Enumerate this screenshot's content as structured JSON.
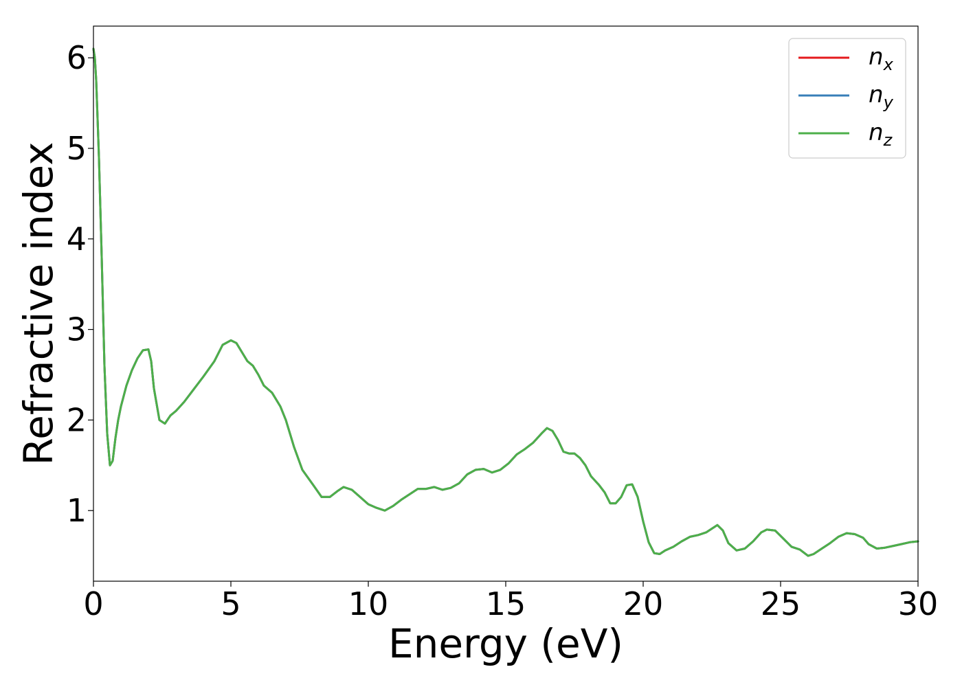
{
  "chart_data": {
    "type": "line",
    "xlabel": "Energy (eV)",
    "ylabel": "Refractive index",
    "xlim": [
      0,
      30
    ],
    "ylim": [
      0.22,
      6.35
    ],
    "xticks": [
      "0",
      "5",
      "10",
      "15",
      "20",
      "25",
      "30"
    ],
    "yticks": [
      "1",
      "2",
      "3",
      "4",
      "5",
      "6"
    ],
    "grid": false,
    "legend_position": "top-right",
    "series": [
      {
        "name": "n",
        "subscript": "x",
        "color": "#e41a1c",
        "x": [
          0,
          0.05,
          0.1,
          0.2,
          0.3,
          0.4,
          0.5,
          0.6,
          0.7,
          0.8,
          0.9,
          1.0,
          1.2,
          1.4,
          1.6,
          1.8,
          2.0,
          2.1,
          2.2,
          2.4,
          2.6,
          2.8,
          3.0,
          3.3,
          3.6,
          4.0,
          4.4,
          4.7,
          5.0,
          5.2,
          5.4,
          5.6,
          5.8,
          6.0,
          6.2,
          6.5,
          6.8,
          7.0,
          7.3,
          7.6,
          8.0,
          8.3,
          8.6,
          8.9,
          9.1,
          9.4,
          9.7,
          10.0,
          10.3,
          10.6,
          10.9,
          11.2,
          11.5,
          11.8,
          12.1,
          12.4,
          12.7,
          13.0,
          13.3,
          13.6,
          13.9,
          14.2,
          14.5,
          14.8,
          15.1,
          15.4,
          15.7,
          16.0,
          16.3,
          16.5,
          16.7,
          16.9,
          17.1,
          17.3,
          17.5,
          17.7,
          17.9,
          18.1,
          18.4,
          18.6,
          18.8,
          19.0,
          19.2,
          19.4,
          19.6,
          19.8,
          20.0,
          20.2,
          20.4,
          20.6,
          20.8,
          21.1,
          21.4,
          21.7,
          22.0,
          22.3,
          22.5,
          22.7,
          22.9,
          23.1,
          23.4,
          23.7,
          24.0,
          24.3,
          24.5,
          24.8,
          25.1,
          25.4,
          25.7,
          26.0,
          26.2,
          26.5,
          26.8,
          27.1,
          27.4,
          27.7,
          28.0,
          28.2,
          28.5,
          28.8,
          29.1,
          29.4,
          29.7,
          30.0
        ],
        "y": [
          6.1,
          6.0,
          5.75,
          4.9,
          3.8,
          2.6,
          1.85,
          1.5,
          1.55,
          1.8,
          2.0,
          2.15,
          2.38,
          2.55,
          2.68,
          2.77,
          2.78,
          2.65,
          2.35,
          2.0,
          1.96,
          2.05,
          2.1,
          2.2,
          2.32,
          2.48,
          2.65,
          2.83,
          2.88,
          2.85,
          2.75,
          2.65,
          2.6,
          2.5,
          2.38,
          2.3,
          2.15,
          2.0,
          1.7,
          1.45,
          1.28,
          1.15,
          1.15,
          1.22,
          1.26,
          1.23,
          1.15,
          1.07,
          1.03,
          1.0,
          1.05,
          1.12,
          1.18,
          1.24,
          1.24,
          1.26,
          1.23,
          1.25,
          1.3,
          1.4,
          1.45,
          1.46,
          1.42,
          1.45,
          1.52,
          1.62,
          1.68,
          1.75,
          1.85,
          1.91,
          1.88,
          1.78,
          1.65,
          1.63,
          1.63,
          1.58,
          1.5,
          1.38,
          1.28,
          1.2,
          1.08,
          1.08,
          1.15,
          1.28,
          1.29,
          1.15,
          0.88,
          0.65,
          0.53,
          0.52,
          0.56,
          0.6,
          0.66,
          0.71,
          0.73,
          0.76,
          0.8,
          0.84,
          0.78,
          0.64,
          0.56,
          0.58,
          0.66,
          0.76,
          0.79,
          0.78,
          0.69,
          0.6,
          0.57,
          0.5,
          0.52,
          0.58,
          0.64,
          0.71,
          0.75,
          0.74,
          0.7,
          0.63,
          0.58,
          0.59,
          0.61,
          0.63,
          0.65,
          0.66
        ]
      },
      {
        "name": "n",
        "subscript": "y",
        "color": "#377eb8",
        "x": [
          0,
          0.05,
          0.1,
          0.2,
          0.3,
          0.4,
          0.5,
          0.6,
          0.7,
          0.8,
          0.9,
          1.0,
          1.2,
          1.4,
          1.6,
          1.8,
          2.0,
          2.1,
          2.2,
          2.4,
          2.6,
          2.8,
          3.0,
          3.3,
          3.6,
          4.0,
          4.4,
          4.7,
          5.0,
          5.2,
          5.4,
          5.6,
          5.8,
          6.0,
          6.2,
          6.5,
          6.8,
          7.0,
          7.3,
          7.6,
          8.0,
          8.3,
          8.6,
          8.9,
          9.1,
          9.4,
          9.7,
          10.0,
          10.3,
          10.6,
          10.9,
          11.2,
          11.5,
          11.8,
          12.1,
          12.4,
          12.7,
          13.0,
          13.3,
          13.6,
          13.9,
          14.2,
          14.5,
          14.8,
          15.1,
          15.4,
          15.7,
          16.0,
          16.3,
          16.5,
          16.7,
          16.9,
          17.1,
          17.3,
          17.5,
          17.7,
          17.9,
          18.1,
          18.4,
          18.6,
          18.8,
          19.0,
          19.2,
          19.4,
          19.6,
          19.8,
          20.0,
          20.2,
          20.4,
          20.6,
          20.8,
          21.1,
          21.4,
          21.7,
          22.0,
          22.3,
          22.5,
          22.7,
          22.9,
          23.1,
          23.4,
          23.7,
          24.0,
          24.3,
          24.5,
          24.8,
          25.1,
          25.4,
          25.7,
          26.0,
          26.2,
          26.5,
          26.8,
          27.1,
          27.4,
          27.7,
          28.0,
          28.2,
          28.5,
          28.8,
          29.1,
          29.4,
          29.7,
          30.0
        ],
        "y": [
          6.1,
          6.0,
          5.75,
          4.9,
          3.8,
          2.6,
          1.85,
          1.5,
          1.55,
          1.8,
          2.0,
          2.15,
          2.38,
          2.55,
          2.68,
          2.77,
          2.78,
          2.65,
          2.35,
          2.0,
          1.96,
          2.05,
          2.1,
          2.2,
          2.32,
          2.48,
          2.65,
          2.83,
          2.88,
          2.85,
          2.75,
          2.65,
          2.6,
          2.5,
          2.38,
          2.3,
          2.15,
          2.0,
          1.7,
          1.45,
          1.28,
          1.15,
          1.15,
          1.22,
          1.26,
          1.23,
          1.15,
          1.07,
          1.03,
          1.0,
          1.05,
          1.12,
          1.18,
          1.24,
          1.24,
          1.26,
          1.23,
          1.25,
          1.3,
          1.4,
          1.45,
          1.46,
          1.42,
          1.45,
          1.52,
          1.62,
          1.68,
          1.75,
          1.85,
          1.91,
          1.88,
          1.78,
          1.65,
          1.63,
          1.63,
          1.58,
          1.5,
          1.38,
          1.28,
          1.2,
          1.08,
          1.08,
          1.15,
          1.28,
          1.29,
          1.15,
          0.88,
          0.65,
          0.53,
          0.52,
          0.56,
          0.6,
          0.66,
          0.71,
          0.73,
          0.76,
          0.8,
          0.84,
          0.78,
          0.64,
          0.56,
          0.58,
          0.66,
          0.76,
          0.79,
          0.78,
          0.69,
          0.6,
          0.57,
          0.5,
          0.52,
          0.58,
          0.64,
          0.71,
          0.75,
          0.74,
          0.7,
          0.63,
          0.58,
          0.59,
          0.61,
          0.63,
          0.65,
          0.66
        ]
      },
      {
        "name": "n",
        "subscript": "z",
        "color": "#4daf4a",
        "x": [
          0,
          0.05,
          0.1,
          0.2,
          0.3,
          0.4,
          0.5,
          0.6,
          0.7,
          0.8,
          0.9,
          1.0,
          1.2,
          1.4,
          1.6,
          1.8,
          2.0,
          2.1,
          2.2,
          2.4,
          2.6,
          2.8,
          3.0,
          3.3,
          3.6,
          4.0,
          4.4,
          4.7,
          5.0,
          5.2,
          5.4,
          5.6,
          5.8,
          6.0,
          6.2,
          6.5,
          6.8,
          7.0,
          7.3,
          7.6,
          8.0,
          8.3,
          8.6,
          8.9,
          9.1,
          9.4,
          9.7,
          10.0,
          10.3,
          10.6,
          10.9,
          11.2,
          11.5,
          11.8,
          12.1,
          12.4,
          12.7,
          13.0,
          13.3,
          13.6,
          13.9,
          14.2,
          14.5,
          14.8,
          15.1,
          15.4,
          15.7,
          16.0,
          16.3,
          16.5,
          16.7,
          16.9,
          17.1,
          17.3,
          17.5,
          17.7,
          17.9,
          18.1,
          18.4,
          18.6,
          18.8,
          19.0,
          19.2,
          19.4,
          19.6,
          19.8,
          20.0,
          20.2,
          20.4,
          20.6,
          20.8,
          21.1,
          21.4,
          21.7,
          22.0,
          22.3,
          22.5,
          22.7,
          22.9,
          23.1,
          23.4,
          23.7,
          24.0,
          24.3,
          24.5,
          24.8,
          25.1,
          25.4,
          25.7,
          26.0,
          26.2,
          26.5,
          26.8,
          27.1,
          27.4,
          27.7,
          28.0,
          28.2,
          28.5,
          28.8,
          29.1,
          29.4,
          29.7,
          30.0
        ],
        "y": [
          6.1,
          6.0,
          5.75,
          4.9,
          3.8,
          2.6,
          1.85,
          1.5,
          1.55,
          1.8,
          2.0,
          2.15,
          2.38,
          2.55,
          2.68,
          2.77,
          2.78,
          2.65,
          2.35,
          2.0,
          1.96,
          2.05,
          2.1,
          2.2,
          2.32,
          2.48,
          2.65,
          2.83,
          2.88,
          2.85,
          2.75,
          2.65,
          2.6,
          2.5,
          2.38,
          2.3,
          2.15,
          2.0,
          1.7,
          1.45,
          1.28,
          1.15,
          1.15,
          1.22,
          1.26,
          1.23,
          1.15,
          1.07,
          1.03,
          1.0,
          1.05,
          1.12,
          1.18,
          1.24,
          1.24,
          1.26,
          1.23,
          1.25,
          1.3,
          1.4,
          1.45,
          1.46,
          1.42,
          1.45,
          1.52,
          1.62,
          1.68,
          1.75,
          1.85,
          1.91,
          1.88,
          1.78,
          1.65,
          1.63,
          1.63,
          1.58,
          1.5,
          1.38,
          1.28,
          1.2,
          1.08,
          1.08,
          1.15,
          1.28,
          1.29,
          1.15,
          0.88,
          0.65,
          0.53,
          0.52,
          0.56,
          0.6,
          0.66,
          0.71,
          0.73,
          0.76,
          0.8,
          0.84,
          0.78,
          0.64,
          0.56,
          0.58,
          0.66,
          0.76,
          0.79,
          0.78,
          0.69,
          0.6,
          0.57,
          0.5,
          0.52,
          0.58,
          0.64,
          0.71,
          0.75,
          0.74,
          0.7,
          0.63,
          0.58,
          0.59,
          0.61,
          0.63,
          0.65,
          0.66
        ]
      }
    ]
  }
}
